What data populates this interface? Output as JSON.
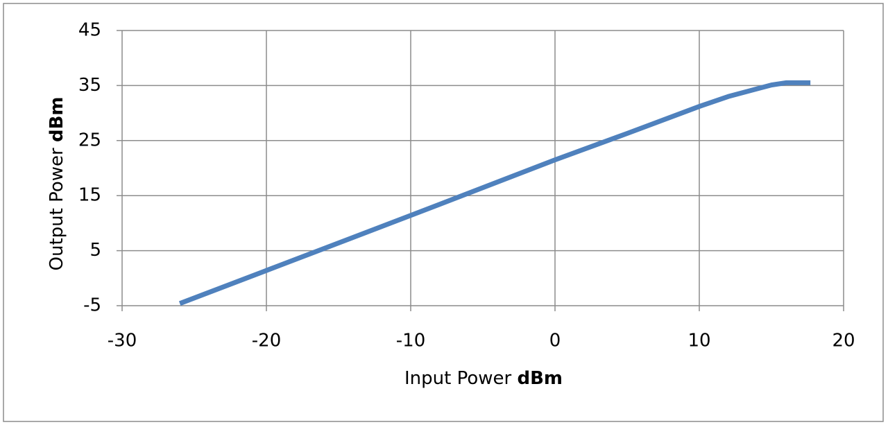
{
  "chart_data": {
    "type": "line",
    "xlabel": "Input Power",
    "xlabel_unit": "dBm",
    "ylabel": "Output Power",
    "ylabel_unit": "dBm",
    "x": [
      -26,
      -20,
      -10,
      0,
      5,
      10,
      12,
      14,
      15,
      16,
      17.7
    ],
    "series": [
      {
        "color": "#4f81bd",
        "values": [
          -4.6,
          1.4,
          11.4,
          21.5,
          26.3,
          31.2,
          33.0,
          34.4,
          35.1,
          35.5,
          35.5
        ]
      }
    ],
    "xlim": [
      -30,
      20
    ],
    "xticks": [
      -30,
      -20,
      -10,
      0,
      10,
      20
    ],
    "ylim": [
      -5,
      45
    ],
    "yticks": [
      -5,
      5,
      15,
      25,
      35,
      45
    ],
    "grid": true
  }
}
